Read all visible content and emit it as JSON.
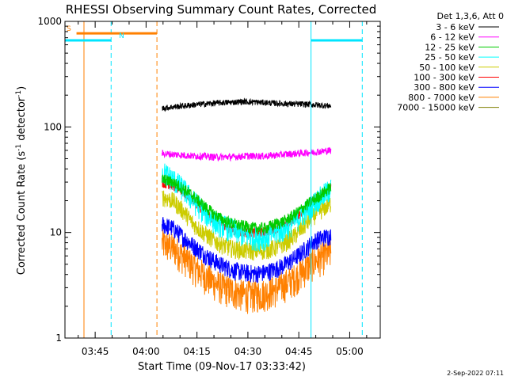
{
  "chart_data": {
    "type": "line",
    "title": "RHESSI Observing Summary Count Rates, Corrected",
    "xlabel": "Start Time (09-Nov-17 03:33:42)",
    "ylabel": "Corrected Count Rate (s⁻¹ detector⁻¹)",
    "ylabel_main": "Corrected Count Rate (s",
    "ylabel_sup1": "-1",
    "ylabel_mid": " detector",
    "ylabel_sup2": "-1",
    "ylabel_end": ")",
    "legend_title": "Det 1,3,6, Att 0",
    "legend_position": "right",
    "y_scale": "log",
    "ylim": [
      1,
      1000
    ],
    "xlim_minutes": [
      3.1,
      96.0
    ],
    "x_ticks": [
      {
        "minute": 12,
        "label": "03:45"
      },
      {
        "minute": 27,
        "label": "04:00"
      },
      {
        "minute": 42,
        "label": "04:15"
      },
      {
        "minute": 57,
        "label": "04:30"
      },
      {
        "minute": 72,
        "label": "04:45"
      },
      {
        "minute": 87,
        "label": "05:00"
      }
    ],
    "y_ticks": [
      {
        "value": 1,
        "label": "1"
      },
      {
        "value": 10,
        "label": "10"
      },
      {
        "value": 100,
        "label": "100"
      },
      {
        "value": 1000,
        "label": "1000"
      }
    ],
    "footer_timestamp": "2-Sep-2022 07:11",
    "data_x_minutes": [
      31.7,
      35,
      38,
      41,
      44,
      47,
      50,
      53,
      56,
      59,
      62,
      65,
      68,
      71,
      74,
      77,
      81.5
    ],
    "series": [
      {
        "name": "3 - 6 keV",
        "color": "#000000",
        "noise": 0.03,
        "values": [
          150,
          155,
          158,
          162,
          165,
          168,
          170,
          172,
          174,
          172,
          170,
          168,
          166,
          165,
          164,
          162,
          158
        ]
      },
      {
        "name": "6 - 12 keV",
        "color": "#ff00ff",
        "noise": 0.035,
        "values": [
          56,
          55,
          54,
          53,
          53,
          52,
          52,
          52,
          53,
          53,
          53,
          54,
          55,
          56,
          57,
          58,
          60
        ]
      },
      {
        "name": "12 - 25 keV",
        "color": "#00cc00",
        "noise": 0.06,
        "values": [
          32,
          30,
          26,
          22,
          18,
          15,
          13,
          12,
          11.5,
          11,
          11,
          12,
          13,
          15,
          18,
          21,
          27
        ]
      },
      {
        "name": "25 - 50 keV",
        "color": "#00ffff",
        "noise": 0.12,
        "values": [
          38,
          32,
          26,
          20,
          16,
          13,
          11.5,
          10.5,
          9.5,
          9,
          9,
          10,
          11,
          13,
          16,
          20,
          26
        ]
      },
      {
        "name": "50 - 100 keV",
        "color": "#cccc00",
        "noise": 0.09,
        "values": [
          22,
          20,
          16,
          12,
          10,
          8.5,
          7.5,
          7,
          6.8,
          6.7,
          6.8,
          7.2,
          8,
          9.5,
          12,
          15,
          19
        ]
      },
      {
        "name": "100 - 300 keV",
        "color": "#ff0000",
        "noise": 0.05,
        "values": [
          30,
          28,
          24,
          20,
          16,
          13,
          11.5,
          10.5,
          10,
          10,
          10,
          10.8,
          12,
          14,
          17,
          21,
          26
        ]
      },
      {
        "name": "300 - 800 keV",
        "color": "#0000ff",
        "noise": 0.09,
        "values": [
          12,
          11,
          9,
          7.5,
          6.3,
          5.4,
          4.8,
          4.4,
          4.2,
          4.1,
          4.2,
          4.5,
          5,
          5.8,
          7,
          8.5,
          9.5
        ]
      },
      {
        "name": "800 - 7000 keV",
        "color": "#ff8000",
        "noise": 0.16,
        "values": [
          8,
          7.2,
          6,
          4.8,
          4,
          3.4,
          3,
          2.8,
          2.6,
          2.6,
          2.7,
          2.9,
          3.3,
          3.8,
          4.6,
          5.5,
          6.5
        ]
      },
      {
        "name": "7000 - 15000 keV",
        "color": "#808000",
        "noise": 0,
        "values": []
      }
    ],
    "flag_bars": [
      {
        "label": "S",
        "color": "#ff8000",
        "y_value": 770,
        "x_start": 6.5,
        "x_end": 30.2
      },
      {
        "label": "N",
        "color": "#00e5ff",
        "y_value": 660,
        "x_start": 3.1,
        "x_end": 16.7
      },
      {
        "label": "",
        "color": "#00e5ff",
        "y_value": 660,
        "x_start": 75.6,
        "x_end": 90.7
      }
    ],
    "vertical_lines": [
      {
        "minute": 8.7,
        "color": "#ff8000",
        "style": "solid"
      },
      {
        "minute": 16.7,
        "color": "#00e5ff",
        "style": "dashed"
      },
      {
        "minute": 30.2,
        "color": "#ff8000",
        "style": "dashed"
      },
      {
        "minute": 75.6,
        "color": "#00e5ff",
        "style": "solid"
      },
      {
        "minute": 90.7,
        "color": "#00e5ff",
        "style": "dashed"
      }
    ]
  }
}
